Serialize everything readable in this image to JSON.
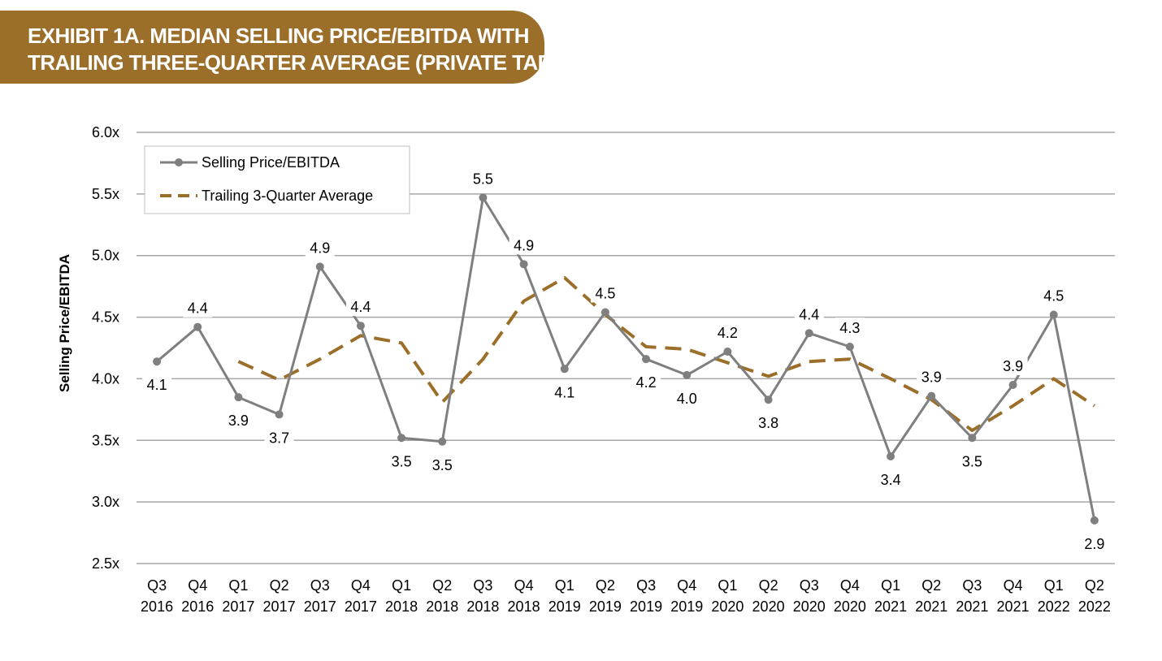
{
  "header": {
    "title_line1": "EXHIBIT 1A. MEDIAN SELLING PRICE/EBITDA WITH",
    "title_line2": "TRAILING THREE-QUARTER AVERAGE (PRIVATE TARGETS)"
  },
  "colors": {
    "banner": "#9b6f2a",
    "selling_line": "#7f7f7f",
    "average_line": "#9b6f2a",
    "grid": "#a6a6a6"
  },
  "chart_data": {
    "type": "line",
    "ylabel": "Selling Price/EBITDA",
    "xlabel": "",
    "ylim": [
      2.5,
      6.0
    ],
    "yticks": [
      "2.5x",
      "3.0x",
      "3.5x",
      "4.0x",
      "4.5x",
      "5.0x",
      "5.5x",
      "6.0x"
    ],
    "ytick_values": [
      2.5,
      3.0,
      3.5,
      4.0,
      4.5,
      5.0,
      5.5,
      6.0
    ],
    "grid": true,
    "legend_position": "top-left",
    "categories": [
      [
        "Q3",
        "2016"
      ],
      [
        "Q4",
        "2016"
      ],
      [
        "Q1",
        "2017"
      ],
      [
        "Q2",
        "2017"
      ],
      [
        "Q3",
        "2017"
      ],
      [
        "Q4",
        "2017"
      ],
      [
        "Q1",
        "2018"
      ],
      [
        "Q2",
        "2018"
      ],
      [
        "Q3",
        "2018"
      ],
      [
        "Q4",
        "2018"
      ],
      [
        "Q1",
        "2019"
      ],
      [
        "Q2",
        "2019"
      ],
      [
        "Q3",
        "2019"
      ],
      [
        "Q4",
        "2019"
      ],
      [
        "Q1",
        "2020"
      ],
      [
        "Q2",
        "2020"
      ],
      [
        "Q3",
        "2020"
      ],
      [
        "Q4",
        "2020"
      ],
      [
        "Q1",
        "2021"
      ],
      [
        "Q2",
        "2021"
      ],
      [
        "Q3",
        "2021"
      ],
      [
        "Q4",
        "2021"
      ],
      [
        "Q1",
        "2022"
      ],
      [
        "Q2",
        "2022"
      ]
    ],
    "series": [
      {
        "name": "Selling Price/EBITDA",
        "style": "solid-markers",
        "values": [
          4.14,
          4.42,
          3.85,
          3.71,
          4.91,
          4.43,
          3.52,
          3.49,
          5.47,
          4.93,
          4.08,
          4.54,
          4.16,
          4.03,
          4.22,
          3.83,
          4.37,
          4.26,
          3.37,
          3.86,
          3.52,
          3.95,
          4.52,
          2.85
        ],
        "labels": [
          "4.1",
          "4.4",
          "3.9",
          "3.7",
          "4.9",
          "4.4",
          "3.5",
          "3.5",
          "5.5",
          "4.9",
          "4.1",
          "4.5",
          "4.2",
          "4.0",
          "4.2",
          "3.8",
          "4.4",
          "4.3",
          "3.4",
          "3.9",
          "3.5",
          "3.9",
          "4.5",
          "2.9"
        ],
        "label_positions": [
          "below",
          "above",
          "below",
          "below",
          "above",
          "above",
          "below",
          "below",
          "above",
          "above",
          "below",
          "above",
          "below",
          "below",
          "above",
          "below",
          "above",
          "above",
          "below",
          "above",
          "below",
          "above",
          "above",
          "below"
        ]
      },
      {
        "name": "Trailing 3-Quarter Average",
        "style": "dashed",
        "values": [
          null,
          null,
          4.14,
          3.99,
          4.16,
          4.35,
          4.29,
          3.81,
          4.16,
          4.63,
          4.82,
          4.52,
          4.26,
          4.24,
          4.13,
          4.02,
          4.14,
          4.16,
          4.0,
          3.83,
          3.58,
          3.78,
          4.0,
          3.78
        ]
      }
    ]
  }
}
